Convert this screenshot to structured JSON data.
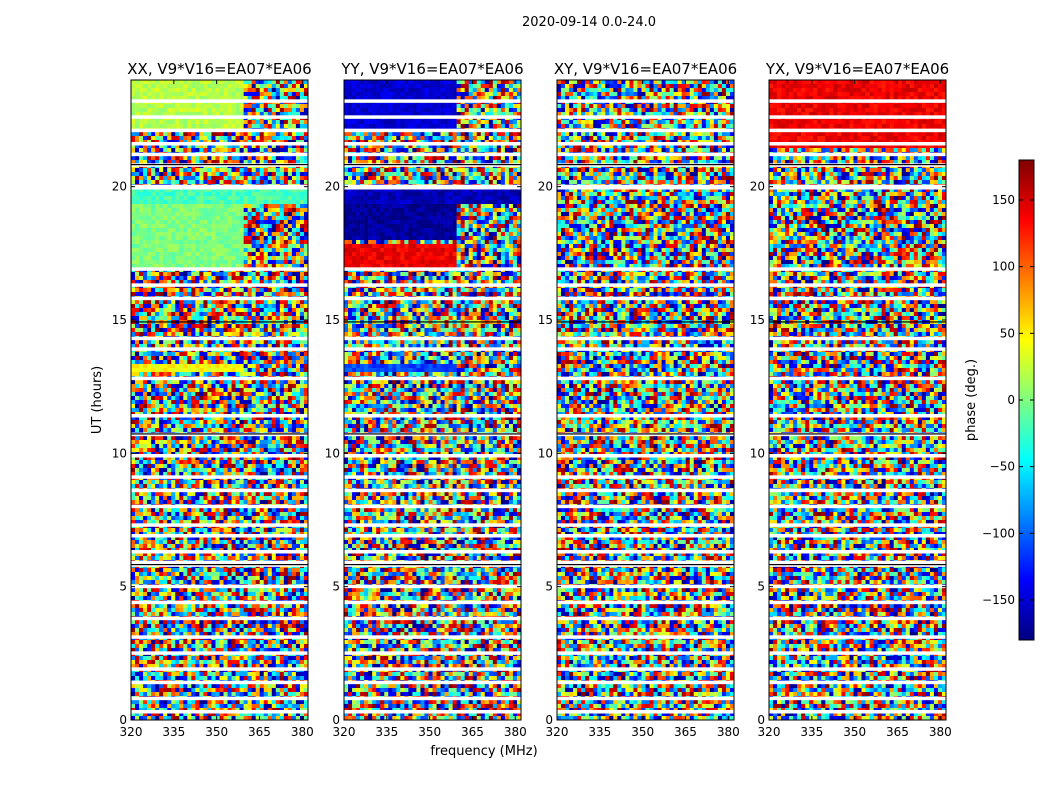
{
  "figure": {
    "suptitle": "2020-09-14 0.0-24.0",
    "ylabel": "UT (hours)",
    "xlabel": "frequency (MHz)",
    "colorbar": {
      "label": "phase (deg.)",
      "range": [
        -180,
        180
      ],
      "ticks": [
        150,
        100,
        50,
        0,
        -50,
        -100,
        -150
      ],
      "tick_labels": [
        "150",
        "100",
        "50",
        "0",
        "−50",
        "−100",
        "−150"
      ],
      "colormap": [
        "#00007f",
        "#0000ff",
        "#007fff",
        "#00ffff",
        "#7fff7f",
        "#ffff00",
        "#ff7f00",
        "#ff0000",
        "#7f0000"
      ]
    }
  },
  "chart_data": [
    {
      "type": "heatmap",
      "title": "XX, V9*V16=EA07*EA06",
      "xlim": [
        320,
        382
      ],
      "ylim": [
        0,
        24
      ],
      "xticks": [
        320,
        335,
        350,
        365,
        380
      ],
      "yticks": [
        0,
        5,
        10,
        15,
        20
      ],
      "xtick_labels": [
        "320",
        "335",
        "350",
        "365",
        "380"
      ],
      "ytick_labels": [
        "0",
        "5",
        "10",
        "15",
        "20"
      ],
      "coherent_bands": [
        {
          "ut": [
            22.0,
            24.0
          ],
          "freq": [
            320,
            359
          ],
          "phase": 20
        },
        {
          "ut": [
            19.4,
            19.9
          ],
          "freq": [
            320,
            382
          ],
          "phase": -20
        },
        {
          "ut": [
            17.0,
            19.3
          ],
          "freq": [
            320,
            359
          ],
          "phase": 0
        },
        {
          "ut": [
            13.0,
            13.4
          ],
          "freq": [
            320,
            359
          ],
          "phase": 45
        }
      ]
    },
    {
      "type": "heatmap",
      "title": "YY, V9*V16=EA07*EA06",
      "xlim": [
        320,
        382
      ],
      "ylim": [
        0,
        24
      ],
      "xticks": [
        320,
        335,
        350,
        365,
        380
      ],
      "yticks": [
        0,
        5,
        10,
        15,
        20
      ],
      "xtick_labels": [
        "320",
        "335",
        "350",
        "365",
        "380"
      ],
      "ytick_labels": [
        "0",
        "5",
        "10",
        "15",
        "20"
      ],
      "coherent_bands": [
        {
          "ut": [
            22.0,
            24.0
          ],
          "freq": [
            320,
            359
          ],
          "phase": -150
        },
        {
          "ut": [
            19.4,
            19.9
          ],
          "freq": [
            320,
            382
          ],
          "phase": -160
        },
        {
          "ut": [
            18.0,
            19.3
          ],
          "freq": [
            320,
            359
          ],
          "phase": -170
        },
        {
          "ut": [
            17.0,
            17.9
          ],
          "freq": [
            320,
            359
          ],
          "phase": 140
        },
        {
          "ut": [
            13.0,
            13.4
          ],
          "freq": [
            320,
            359
          ],
          "phase": -110
        }
      ]
    },
    {
      "type": "heatmap",
      "title": "XY, V9*V16=EA07*EA06",
      "xlim": [
        320,
        382
      ],
      "ylim": [
        0,
        24
      ],
      "xticks": [
        320,
        335,
        350,
        365,
        380
      ],
      "yticks": [
        0,
        5,
        10,
        15,
        20
      ],
      "xtick_labels": [
        "320",
        "335",
        "350",
        "365",
        "380"
      ],
      "ytick_labels": [
        "0",
        "5",
        "10",
        "15",
        "20"
      ],
      "coherent_bands": []
    },
    {
      "type": "heatmap",
      "title": "YX, V9*V16=EA07*EA06",
      "xlim": [
        320,
        382
      ],
      "ylim": [
        0,
        24
      ],
      "xticks": [
        320,
        335,
        350,
        365,
        380
      ],
      "yticks": [
        0,
        5,
        10,
        15,
        20
      ],
      "xtick_labels": [
        "320",
        "335",
        "350",
        "365",
        "380"
      ],
      "ytick_labels": [
        "0",
        "5",
        "10",
        "15",
        "20"
      ],
      "coherent_bands": [
        {
          "ut": [
            21.5,
            24.0
          ],
          "freq": [
            320,
            382
          ],
          "phase": 140
        }
      ]
    }
  ]
}
